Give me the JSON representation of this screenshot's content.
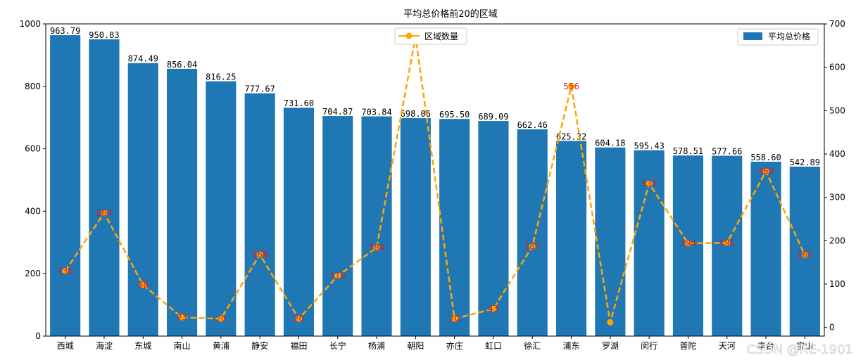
{
  "chart_data": {
    "type": "bar",
    "title": "平均总价格前20的区域",
    "categories": [
      "西城",
      "海淀",
      "东城",
      "南山",
      "黄浦",
      "静安",
      "福田",
      "长宁",
      "杨浦",
      "朝阳",
      "亦庄",
      "虹口",
      "徐汇",
      "浦东",
      "罗湖",
      "闵行",
      "普陀",
      "天河",
      "丰台",
      "宝山"
    ],
    "series": [
      {
        "name": "平均总价格",
        "type": "bar",
        "axis": "left",
        "color": "#1f77b4",
        "values": [
          963.79,
          950.83,
          874.49,
          856.04,
          816.25,
          777.67,
          731.6,
          704.87,
          703.84,
          698.06,
          695.5,
          689.09,
          662.46,
          625.32,
          604.18,
          595.43,
          578.51,
          577.66,
          558.6,
          542.89
        ],
        "labels": [
          "963.79",
          "950.83",
          "874.49",
          "856.04",
          "816.25",
          "777.67",
          "731.60",
          "704.87",
          "703.84",
          "698.06",
          "695.50",
          "689.09",
          "662.46",
          "625.32",
          "604.18",
          "595.43",
          "578.51",
          "577.66",
          "558.60",
          "542.89"
        ]
      },
      {
        "name": "区域数量",
        "type": "line",
        "axis": "right",
        "color": "#ffa500",
        "label_color": "#e31a1c",
        "style": "dashed",
        "values": [
          130,
          264,
          98,
          23,
          20,
          168,
          20,
          119,
          184,
          670,
          20,
          43,
          187,
          556,
          12,
          332,
          194,
          195,
          360,
          167
        ],
        "labels": [
          "130",
          "264",
          "98",
          "23",
          "20",
          "168",
          "20",
          "119",
          "184",
          "670",
          "20",
          "43",
          "187",
          "556",
          "",
          "332",
          "194",
          "195",
          "360",
          "167"
        ]
      }
    ],
    "y_left": {
      "ylim": [
        0,
        1000
      ],
      "ticks": [
        "0",
        "200",
        "400",
        "600",
        "800",
        "1000"
      ]
    },
    "y_right": {
      "ylim": [
        -20,
        700
      ],
      "ticks": [
        "0",
        "100",
        "200",
        "300",
        "400",
        "500",
        "600",
        "700"
      ]
    },
    "legend_placement": {
      "bar": "top-right",
      "line": "top-center"
    },
    "grid": false
  },
  "watermark": "CSDN @RE-1901"
}
